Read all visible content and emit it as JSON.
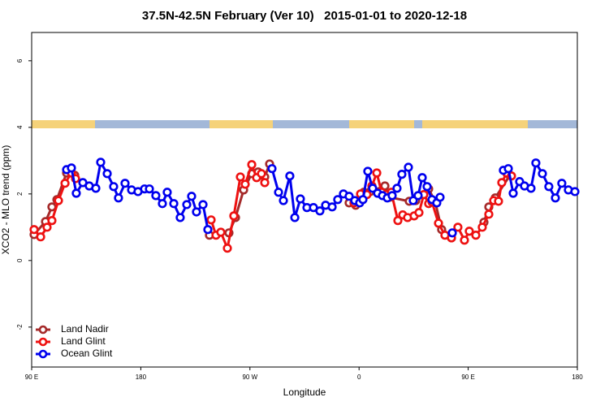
{
  "chart_data": {
    "type": "line",
    "title": "37.5N-42.5N February (Ver 10)   2015-01-01 to 2020-12-18",
    "xlabel": "Longitude",
    "ylabel": "XCO2 - MLO trend (ppm)",
    "xlim": [
      90,
      540
    ],
    "ylim": [
      -3.2,
      6.85
    ],
    "xticks": [
      {
        "value": 90,
        "label": "90 E"
      },
      180,
      {
        "value": 270,
        "label": "90 W"
      },
      {
        "value": 360,
        "label": "0"
      },
      {
        "value": 450,
        "label": "90 E"
      },
      {
        "value": 540,
        "label": "180"
      }
    ],
    "yticks": [
      -2,
      0,
      2,
      4,
      6
    ],
    "legend": "bottom-left",
    "series": [
      {
        "name": "Land Nadir",
        "color": "#a52a2a",
        "x": [
          92.0,
          101.4,
          106.7,
          110.8,
          118.8,
          125.5,
          null,
          236.6,
          252.7,
          258.1,
          264.8,
          271.5,
          276.8,
          282.2,
          286.2,
          null,
          351.8,
          357.2,
          363.9,
          369.2,
          381.3,
          385.3,
          401.4,
          406.7,
          417.4,
          422.8,
          428.1,
          436.2,
          null,
          463.0,
          467.0,
          472.3,
          484.4
        ],
        "values": [
          0.78,
          1.17,
          1.61,
          1.83,
          2.63,
          2.56,
          null,
          0.76,
          0.83,
          1.29,
          2.12,
          2.61,
          2.66,
          2.51,
          2.9,
          null,
          1.73,
          1.66,
          2.05,
          2.07,
          2.24,
          1.9,
          1.78,
          1.8,
          2.15,
          1.76,
          0.93,
          0.68,
          null,
          1.15,
          1.61,
          1.88,
          2.56
        ]
      },
      {
        "name": "Land Glint",
        "color": "#ee1111",
        "x": [
          92.0,
          97.4,
          102.7,
          106.7,
          112.1,
          117.5,
          122.8,
          126.2,
          null,
          238.0,
          242.0,
          246.0,
          251.4,
          256.7,
          262.1,
          266.1,
          271.5,
          275.5,
          279.5,
          282.2,
          null,
          355.8,
          361.2,
          366.5,
          370.6,
          374.6,
          378.6,
          382.6,
          386.6,
          392.0,
          396.0,
          400.0,
          405.4,
          409.4,
          413.4,
          417.4,
          420.1,
          425.5,
          430.8,
          436.2,
          441.5,
          446.9,
          450.9,
          456.3,
          461.6,
          467.0,
          471.0,
          475.0,
          477.7,
          481.7,
          485.7
        ],
        "values": [
          0.93,
          0.71,
          1.0,
          1.2,
          1.8,
          2.32,
          2.63,
          2.46,
          null,
          1.22,
          0.76,
          0.85,
          0.37,
          1.34,
          2.51,
          2.29,
          2.88,
          2.49,
          2.61,
          2.34,
          null,
          1.73,
          2.0,
          1.98,
          2.24,
          2.63,
          2.05,
          1.98,
          2.05,
          1.2,
          1.37,
          1.29,
          1.34,
          1.44,
          1.98,
          1.71,
          1.76,
          1.12,
          0.76,
          0.68,
          1.0,
          0.61,
          0.88,
          0.76,
          1.0,
          1.39,
          1.8,
          1.78,
          2.34,
          2.63,
          2.54
        ]
      },
      {
        "name": "Ocean Glint",
        "color": "#0000ee",
        "x": [
          118.8,
          122.8,
          126.8,
          132.2,
          137.5,
          142.9,
          146.9,
          152.3,
          157.6,
          161.6,
          167.0,
          172.4,
          177.7,
          183.1,
          187.1,
          192.4,
          197.8,
          201.8,
          207.2,
          212.5,
          217.9,
          221.9,
          225.9,
          231.3,
          235.3,
          null,
          288.2,
          293.6,
          297.6,
          302.9,
          307.0,
          311.6,
          317.0,
          322.4,
          327.7,
          332.4,
          337.8,
          342.4,
          347.1,
          351.8,
          356.5,
          360.5,
          363.2,
          367.2,
          371.2,
          375.3,
          379.3,
          383.3,
          387.3,
          391.3,
          395.3,
          400.7,
          404.7,
          408.7,
          412.1,
          416.1,
          420.1,
          424.1,
          426.8,
          null,
          436.9,
          null,
          479.0,
          483.1,
          487.1,
          492.4,
          496.4,
          501.8,
          505.8,
          511.2,
          516.5,
          521.9,
          527.2,
          532.6,
          538.0
        ],
        "values": [
          2.73,
          2.78,
          2.02,
          2.34,
          2.24,
          2.17,
          2.95,
          2.61,
          2.22,
          1.88,
          2.32,
          2.12,
          2.07,
          2.15,
          2.15,
          1.95,
          1.71,
          2.05,
          1.71,
          1.29,
          1.68,
          1.93,
          1.46,
          1.68,
          0.93,
          null,
          2.76,
          2.05,
          1.8,
          2.54,
          1.29,
          1.85,
          1.59,
          1.59,
          1.49,
          1.66,
          1.61,
          1.83,
          2.0,
          1.93,
          1.8,
          1.73,
          1.83,
          2.68,
          2.17,
          2.02,
          1.95,
          1.88,
          1.95,
          2.17,
          2.59,
          2.8,
          1.8,
          1.95,
          2.49,
          2.22,
          1.83,
          1.73,
          1.9,
          null,
          0.83,
          null,
          2.71,
          2.76,
          2.02,
          2.37,
          2.24,
          2.17,
          2.93,
          2.61,
          2.22,
          1.88,
          2.32,
          2.12,
          2.07
        ]
      }
    ]
  }
}
